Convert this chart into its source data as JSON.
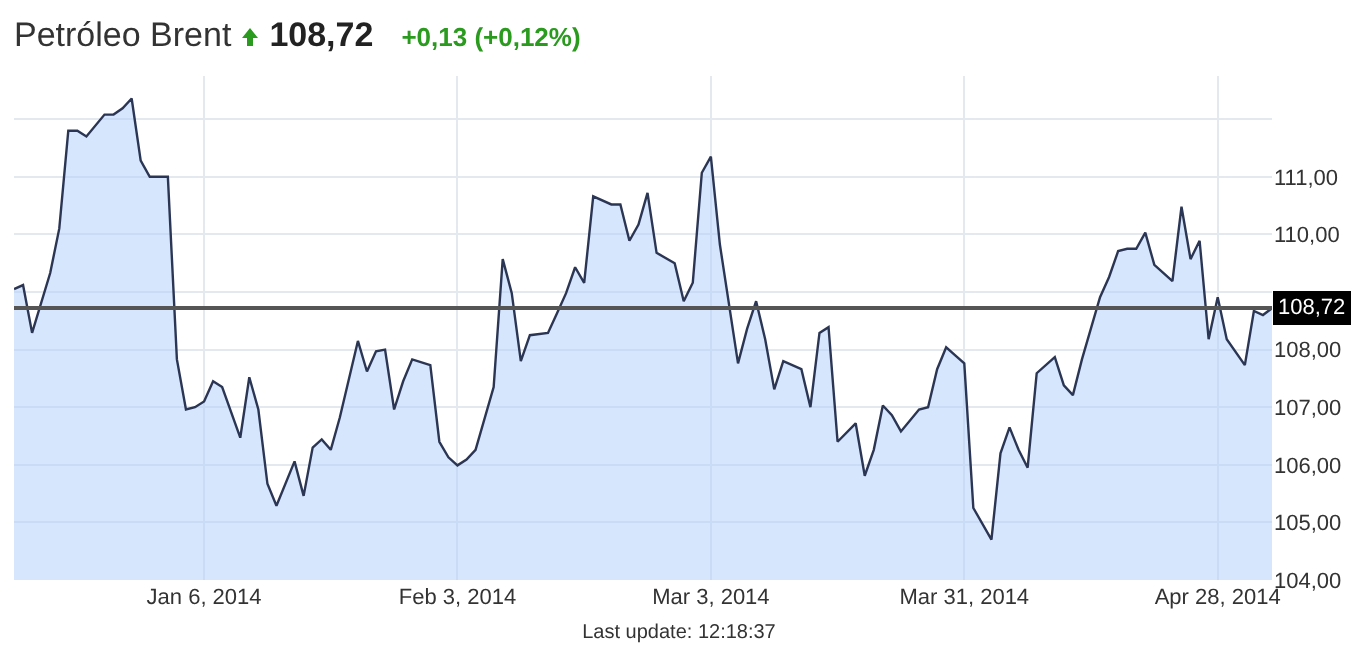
{
  "chart_data": {
    "type": "area",
    "title": "Petróleo Brent",
    "subtitle": "108,72",
    "annotations": [
      "+0,13 (+0,12%)",
      "Last update: 12:18:37"
    ],
    "x": [
      "2013-12-16",
      "2013-12-17",
      "2013-12-18",
      "2013-12-20",
      "2013-12-21",
      "2013-12-22",
      "2013-12-23",
      "2013-12-24",
      "2013-12-26",
      "2013-12-27",
      "2013-12-28",
      "2013-12-29",
      "2013-12-30",
      "2013-12-31",
      "2014-01-02",
      "2014-01-03",
      "2014-01-04",
      "2014-01-05",
      "2014-01-06",
      "2014-01-07",
      "2014-01-08",
      "2014-01-10",
      "2014-01-11",
      "2014-01-12",
      "2014-01-13",
      "2014-01-14",
      "2014-01-16",
      "2014-01-17",
      "2014-01-18",
      "2014-01-19",
      "2014-01-20",
      "2014-01-21",
      "2014-01-23",
      "2014-01-24",
      "2014-01-25",
      "2014-01-26",
      "2014-01-27",
      "2014-01-28",
      "2014-01-29",
      "2014-01-31",
      "2014-02-01",
      "2014-02-02",
      "2014-02-03",
      "2014-02-04",
      "2014-02-05",
      "2014-02-07",
      "2014-02-08",
      "2014-02-09",
      "2014-02-10",
      "2014-02-11",
      "2014-02-13",
      "2014-02-14",
      "2014-02-15",
      "2014-02-16",
      "2014-02-17",
      "2014-02-18",
      "2014-02-20",
      "2014-02-21",
      "2014-02-22",
      "2014-02-23",
      "2014-02-24",
      "2014-02-25",
      "2014-02-27",
      "2014-02-28",
      "2014-03-01",
      "2014-03-02",
      "2014-03-03",
      "2014-03-04",
      "2014-03-06",
      "2014-03-07",
      "2014-03-08",
      "2014-03-09",
      "2014-03-10",
      "2014-03-11",
      "2014-03-13",
      "2014-03-14",
      "2014-03-15",
      "2014-03-16",
      "2014-03-17",
      "2014-03-19",
      "2014-03-20",
      "2014-03-21",
      "2014-03-22",
      "2014-03-23",
      "2014-03-24",
      "2014-03-26",
      "2014-03-27",
      "2014-03-28",
      "2014-03-29",
      "2014-03-30",
      "2014-03-31",
      "2014-04-01",
      "2014-04-03",
      "2014-04-04",
      "2014-04-05",
      "2014-04-06",
      "2014-04-07",
      "2014-04-08",
      "2014-04-10",
      "2014-04-11",
      "2014-04-12",
      "2014-04-13",
      "2014-04-15",
      "2014-04-16",
      "2014-04-17",
      "2014-04-18",
      "2014-04-19",
      "2014-04-20",
      "2014-04-21",
      "2014-04-23",
      "2014-04-24",
      "2014-04-25",
      "2014-04-26",
      "2014-04-27",
      "2014-04-28",
      "2014-04-29",
      "2014-05-01",
      "2014-05-02",
      "2014-05-03",
      "2014-05-04"
    ],
    "series": [
      {
        "color": "#2b3654",
        "values": [
          109.05,
          109.12,
          108.29,
          109.33,
          110.1,
          111.8,
          111.8,
          111.7,
          112.08,
          112.08,
          112.19,
          112.36,
          111.28,
          111.0,
          111.0,
          107.83,
          106.96,
          107.0,
          107.1,
          107.45,
          107.35,
          106.47,
          107.52,
          106.96,
          105.67,
          105.29,
          106.06,
          105.46,
          106.3,
          106.44,
          106.26,
          106.82,
          108.15,
          107.62,
          107.97,
          108.0,
          106.96,
          107.45,
          107.83,
          107.73,
          106.4,
          106.13,
          105.99,
          106.09,
          106.26,
          107.35,
          109.57,
          108.98,
          107.8,
          108.25,
          108.29,
          108.63,
          108.98,
          109.43,
          109.16,
          110.66,
          110.52,
          110.52,
          109.89,
          110.17,
          110.72,
          109.68,
          109.5,
          108.84,
          109.16,
          111.07,
          111.35,
          109.82,
          107.76,
          108.36,
          108.84,
          108.18,
          107.31,
          107.8,
          107.66,
          107.0,
          108.29,
          108.39,
          106.4,
          106.72,
          105.81,
          106.26,
          107.03,
          106.86,
          106.58,
          106.96,
          107.0,
          107.66,
          108.04,
          107.9,
          107.76,
          105.25,
          104.7,
          106.2,
          106.65,
          106.26,
          105.95,
          107.59,
          107.87,
          107.38,
          107.21,
          107.83,
          108.91,
          109.26,
          109.71,
          109.75,
          109.75,
          110.03,
          109.47,
          109.19,
          110.48,
          109.57,
          109.89,
          108.18,
          108.91,
          108.18,
          107.73,
          108.67,
          108.6,
          108.72
        ]
      }
    ],
    "xlim": [
      "2013-12-16",
      "2014-05-04"
    ],
    "xticks": [
      {
        "value": "2014-01-06",
        "label": "Jan 6, 2014"
      },
      {
        "value": "2014-02-03",
        "label": "Feb 3, 2014"
      },
      {
        "value": "2014-03-03",
        "label": "Mar 3, 2014"
      },
      {
        "value": "2014-03-31",
        "label": "Mar 31, 2014"
      },
      {
        "value": "2014-04-28",
        "label": "Apr 28, 2014"
      }
    ],
    "ylim": [
      104,
      112.75
    ],
    "yticks": [
      {
        "value": 104,
        "label": "104,00"
      },
      {
        "value": 105,
        "label": "105,00"
      },
      {
        "value": 106,
        "label": "106,00"
      },
      {
        "value": 107,
        "label": "107,00"
      },
      {
        "value": 108,
        "label": "108,00"
      },
      {
        "value": 109,
        "label": null
      },
      {
        "value": 110,
        "label": "110,00"
      },
      {
        "value": 111,
        "label": "111,00"
      },
      {
        "value": 112,
        "label": null
      }
    ],
    "ref_lines": [
      {
        "axis": "y",
        "value": 108.72,
        "label": "108,72",
        "color": "#555555"
      }
    ],
    "grid": true,
    "marker": "none",
    "line_style": "solid"
  }
}
